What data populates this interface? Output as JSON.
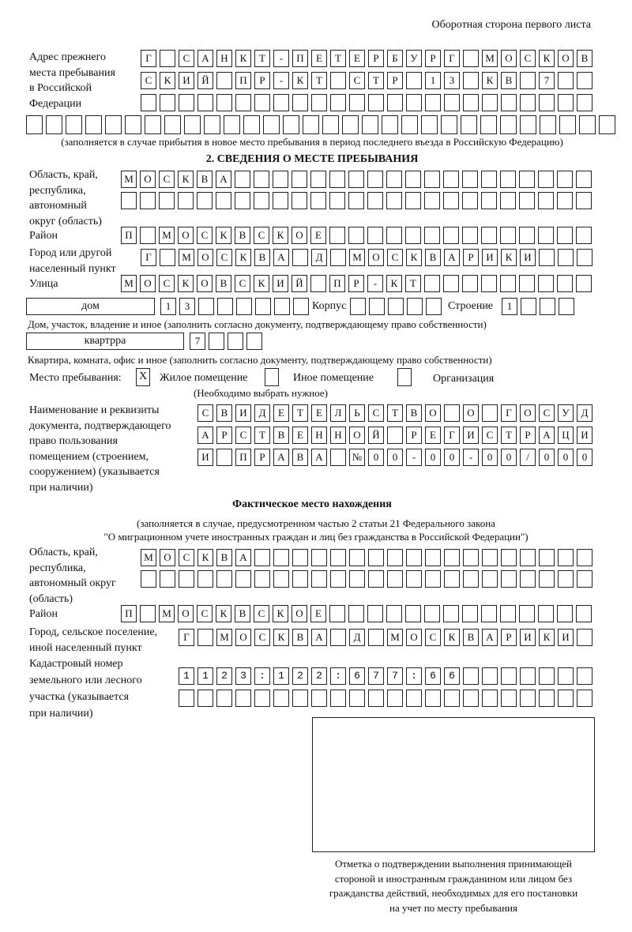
{
  "header": {
    "page_side": "Оборотная сторона первого листа"
  },
  "prev_address": {
    "label": "Адрес прежнего\nместа пребывания\nв Российской\nФедерации",
    "line1": "Г САНКТ-ПЕТЕРБУРГ МОСКОВ",
    "line2": "СКИЙ ПР-КТ СТР 13 КВ 7",
    "line3": "",
    "line4": "",
    "note": "(заполняется в случае прибытия в новое место пребывания в период последнего въезда в Российскую Федерацию)"
  },
  "section2": {
    "title": "2. СВЕДЕНИЯ О МЕСТЕ ПРЕБЫВАНИЯ",
    "region_label": "Область, край,\nреспублика,\nавтономный\nокруг (область)",
    "region_line1": "МОСКВА",
    "region_line2": "",
    "district_label": "Район",
    "district": "П МОСКВСКОЕ",
    "city_label": "Город или другой\nнаселенный пункт",
    "city": "Г МОСКВА Д МОСКВАРИКИ",
    "street_label": "Улица",
    "street": "МОСКОВСКИЙ ПР-КТ",
    "house_type": "дом",
    "house": "13",
    "korpus_label": "Корпус",
    "korpus": "",
    "building_label": "Строение",
    "building": "1",
    "house_note": "Дом, участок, владение и иное (заполнить согласно документу, подтверждающему право собственности)",
    "apt_type": "квартрра",
    "apt": "7",
    "apt_note": "Квартира, комната, офис и иное (заполнить согласно документу, подтверждающему право собственности)",
    "stay_label": "Место пребывания:",
    "stay_options": [
      {
        "label": "Жилое помещение",
        "mark": "X"
      },
      {
        "label": "Иное помещение",
        "mark": ""
      },
      {
        "label": "Организация",
        "mark": ""
      }
    ],
    "stay_note": "(Необходимо выбрать нужное)",
    "doc_label": "Наименование и реквизиты\nдокумента, подтверждающего\nправо пользования\nпомещением (строением,\nсооружением) (указывается\nпри наличии)",
    "doc_line1": "СВИДЕТЕЛЬСТВО О ГОСУД",
    "doc_line2": "АРСТВЕННОЙ РЕГИСТРАЦИ",
    "doc_line3": "И ПРАВА №00-00-00/000"
  },
  "actual": {
    "title": "Фактическое место нахождения",
    "note_line1": "(заполняется в случае, предусмотренном частью 2 статьи 21 Федерального закона",
    "note_line2": "\"О миграционном учете иностранных граждан и лиц без гражданства в Российской Федерации\")",
    "region_label": "Область, край,\nреспублика,\nавтономный округ\n(область)",
    "region_line1": "МОСКВА",
    "region_line2": "",
    "district_label": "Район",
    "district": "П МОСКВСКОЕ",
    "city_label": "Город, сельское поселение,\nиной населенный пункт",
    "city": "Г МОСКВА Д МОСКВАРИКИ",
    "cadastral_label": "Кадастровый номер\nземельного или лесного\nучастка (указывается\nпри наличии)",
    "cadastral_line1": "1123:122:677:66",
    "cadastral_line2": ""
  },
  "stamp": {
    "caption": "Отметка о подтверждении выполнения принимающей\nстороной и иностранным гражданином или лицом без\nгражданства действий, необходимых для его постановки\nна учет по месту пребывания"
  }
}
